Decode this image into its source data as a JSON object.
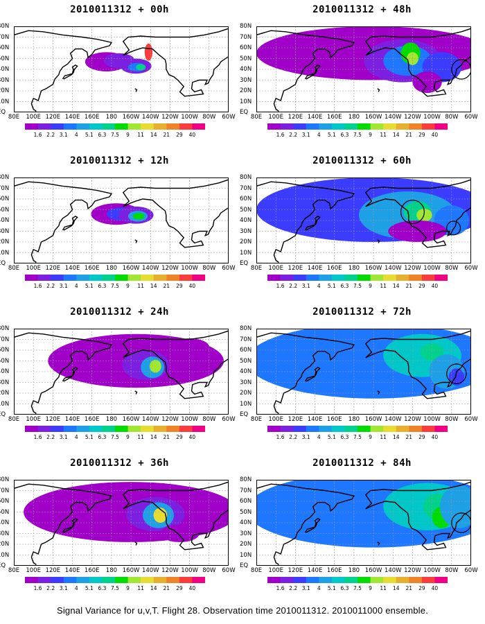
{
  "panels": [
    {
      "title": "2010011312 + 00h"
    },
    {
      "title": "2010011312 + 48h"
    },
    {
      "title": "2010011312 + 12h"
    },
    {
      "title": "2010011312 + 60h"
    },
    {
      "title": "2010011312 + 24h"
    },
    {
      "title": "2010011312 + 72h"
    },
    {
      "title": "2010011312 + 36h"
    },
    {
      "title": "2010011312 + 84h"
    }
  ],
  "lat_labels": [
    "80N",
    "70N",
    "60N",
    "50N",
    "40N",
    "30N",
    "20N",
    "10N",
    "EQ"
  ],
  "lon_labels": [
    "80E",
    "100E",
    "120E",
    "140E",
    "160E",
    "180",
    "160W",
    "140W",
    "120W",
    "100W",
    "80W",
    "60W"
  ],
  "colorbar": {
    "labels": [
      "1.6",
      "2.2",
      "3.1",
      "4",
      "5.1",
      "6.3",
      "7.5",
      "9",
      "11",
      "14",
      "21",
      "29",
      "40"
    ],
    "colors": [
      "#a000c8",
      "#7d1fe0",
      "#3c3cff",
      "#1e78ff",
      "#1ea0e6",
      "#00c8c8",
      "#00d28c",
      "#00dc00",
      "#a0e632",
      "#e6dc32",
      "#e6af2d",
      "#f08228",
      "#fa3c3c",
      "#f00082"
    ]
  },
  "caption": "Signal Variance for u,v,T. Flight 28. Observation time 2010011312. 2010011000 ensemble."
}
